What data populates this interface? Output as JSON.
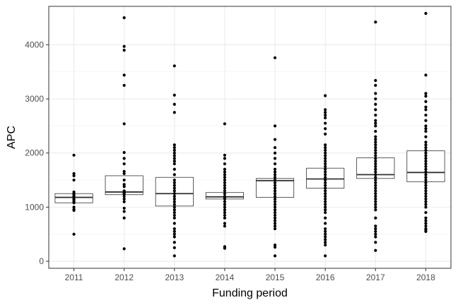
{
  "chart_data": {
    "type": "boxplot",
    "xlabel": "Funding period",
    "ylabel": "APC",
    "categories": [
      "2011",
      "2012",
      "2013",
      "2014",
      "2015",
      "2016",
      "2017",
      "2018"
    ],
    "ylim": [
      -130,
      4710
    ],
    "yticks": [
      0,
      1000,
      2000,
      3000,
      4000
    ],
    "grid": true,
    "theme": "bw",
    "boxes": [
      {
        "category": "2011",
        "q1": 1080,
        "median": 1180,
        "q3": 1250
      },
      {
        "category": "2012",
        "q1": 1230,
        "median": 1280,
        "q3": 1580
      },
      {
        "category": "2013",
        "q1": 1020,
        "median": 1250,
        "q3": 1550
      },
      {
        "category": "2014",
        "q1": 1150,
        "median": 1190,
        "q3": 1270
      },
      {
        "category": "2015",
        "q1": 1180,
        "median": 1490,
        "q3": 1530
      },
      {
        "category": "2016",
        "q1": 1350,
        "median": 1520,
        "q3": 1720
      },
      {
        "category": "2017",
        "q1": 1530,
        "median": 1600,
        "q3": 1910
      },
      {
        "category": "2018",
        "q1": 1470,
        "median": 1640,
        "q3": 2040
      }
    ],
    "points": [
      {
        "category": "2011",
        "values": [
          1960,
          1620,
          1580,
          1500,
          1280,
          1250,
          1230,
          1200,
          1180,
          1150,
          1130,
          1100,
          1080,
          1000,
          960,
          940,
          500
        ]
      },
      {
        "category": "2012",
        "values": [
          4500,
          3970,
          3900,
          3440,
          3250,
          2540,
          2010,
          1900,
          1800,
          1660,
          1620,
          1500,
          1420,
          1380,
          1300,
          1290,
          1280,
          1270,
          1250,
          1240,
          1200,
          1150,
          1100,
          980,
          920,
          800,
          230
        ]
      },
      {
        "category": "2013",
        "values": [
          3610,
          3070,
          2900,
          2750,
          2150,
          2100,
          2050,
          2000,
          1950,
          1900,
          1850,
          1800,
          1700,
          1600,
          1500,
          1450,
          1400,
          1350,
          1300,
          1250,
          1200,
          1150,
          1100,
          1050,
          1000,
          950,
          900,
          850,
          800,
          700,
          600,
          550,
          500,
          450,
          350,
          250,
          100
        ]
      },
      {
        "category": "2014",
        "values": [
          2540,
          1960,
          1900,
          1800,
          1700,
          1650,
          1600,
          1550,
          1500,
          1450,
          1400,
          1350,
          1300,
          1250,
          1200,
          1180,
          1150,
          1100,
          1050,
          1000,
          950,
          900,
          850,
          800,
          700,
          650,
          270,
          240
        ]
      },
      {
        "category": "2015",
        "values": [
          3760,
          2500,
          2250,
          2100,
          2000,
          1900,
          1800,
          1700,
          1650,
          1600,
          1550,
          1500,
          1450,
          1400,
          1350,
          1300,
          1250,
          1200,
          1150,
          1100,
          1050,
          1000,
          950,
          900,
          850,
          800,
          750,
          700,
          650,
          600,
          300,
          260,
          100
        ]
      },
      {
        "category": "2016",
        "values": [
          3060,
          2800,
          2750,
          2700,
          2650,
          2550,
          2450,
          2350,
          2150,
          2100,
          2050,
          2000,
          1950,
          1900,
          1850,
          1800,
          1750,
          1700,
          1650,
          1600,
          1550,
          1500,
          1450,
          1400,
          1350,
          1300,
          1250,
          1200,
          1150,
          1100,
          1050,
          1000,
          950,
          900,
          800,
          700,
          600,
          550,
          500,
          450,
          400,
          350,
          300,
          100
        ]
      },
      {
        "category": "2017",
        "values": [
          4420,
          3340,
          3250,
          3100,
          3000,
          2900,
          2800,
          2700,
          2600,
          2550,
          2500,
          2400,
          2300,
          2250,
          2200,
          2150,
          2100,
          2050,
          2000,
          1950,
          1900,
          1850,
          1800,
          1750,
          1700,
          1650,
          1600,
          1550,
          1500,
          1450,
          1400,
          1350,
          1300,
          1250,
          1200,
          1150,
          1100,
          1050,
          1000,
          950,
          800,
          650,
          600,
          550,
          500,
          450,
          350,
          200
        ]
      },
      {
        "category": "2018",
        "values": [
          4580,
          3440,
          3100,
          3050,
          2950,
          2850,
          2800,
          2700,
          2600,
          2500,
          2450,
          2400,
          2300,
          2200,
          2150,
          2100,
          2050,
          2000,
          1950,
          1900,
          1850,
          1800,
          1750,
          1700,
          1650,
          1600,
          1550,
          1500,
          1450,
          1400,
          1350,
          1300,
          1250,
          1200,
          1150,
          1100,
          1050,
          1000,
          900,
          800,
          750,
          700,
          650,
          600,
          580,
          550
        ]
      }
    ]
  }
}
